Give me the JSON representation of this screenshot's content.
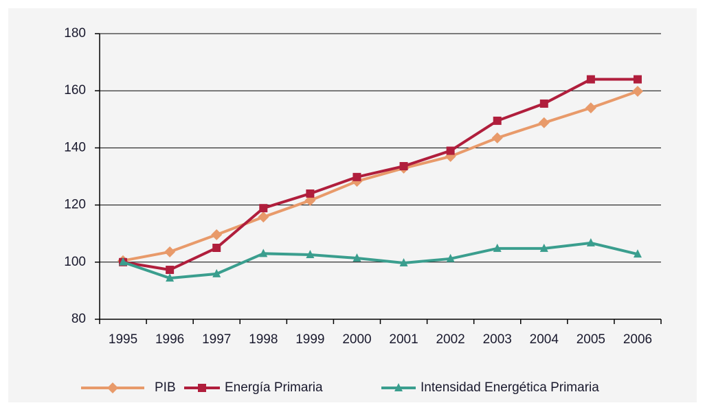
{
  "chart_data": {
    "type": "line",
    "categories": [
      "1995",
      "1996",
      "1997",
      "1998",
      "1999",
      "2000",
      "2001",
      "2002",
      "2003",
      "2004",
      "2005",
      "2006"
    ],
    "series": [
      {
        "name": "PIB",
        "color": "#e89a6a",
        "marker": "diamond",
        "values": [
          100.5,
          103.6,
          109.6,
          115.8,
          121.6,
          128.3,
          132.9,
          137,
          143.5,
          148.8,
          154,
          159.8
        ]
      },
      {
        "name": "Energía Primaria",
        "color": "#b01e3c",
        "marker": "square",
        "values": [
          100,
          97.3,
          105,
          118.9,
          124,
          129.8,
          133.6,
          139,
          149.5,
          155.5,
          164,
          164
        ]
      },
      {
        "name": "Intensidad Energética Primaria",
        "color": "#3a9e8e",
        "marker": "triangle",
        "values": [
          100,
          94.4,
          95.9,
          103,
          102.6,
          101.4,
          99.7,
          101.2,
          104.8,
          104.8,
          106.7,
          102.8
        ]
      }
    ],
    "ylim": [
      80,
      180
    ],
    "yticks": [
      80,
      100,
      120,
      140,
      160,
      180
    ],
    "grid": true,
    "legend": "bottom"
  }
}
